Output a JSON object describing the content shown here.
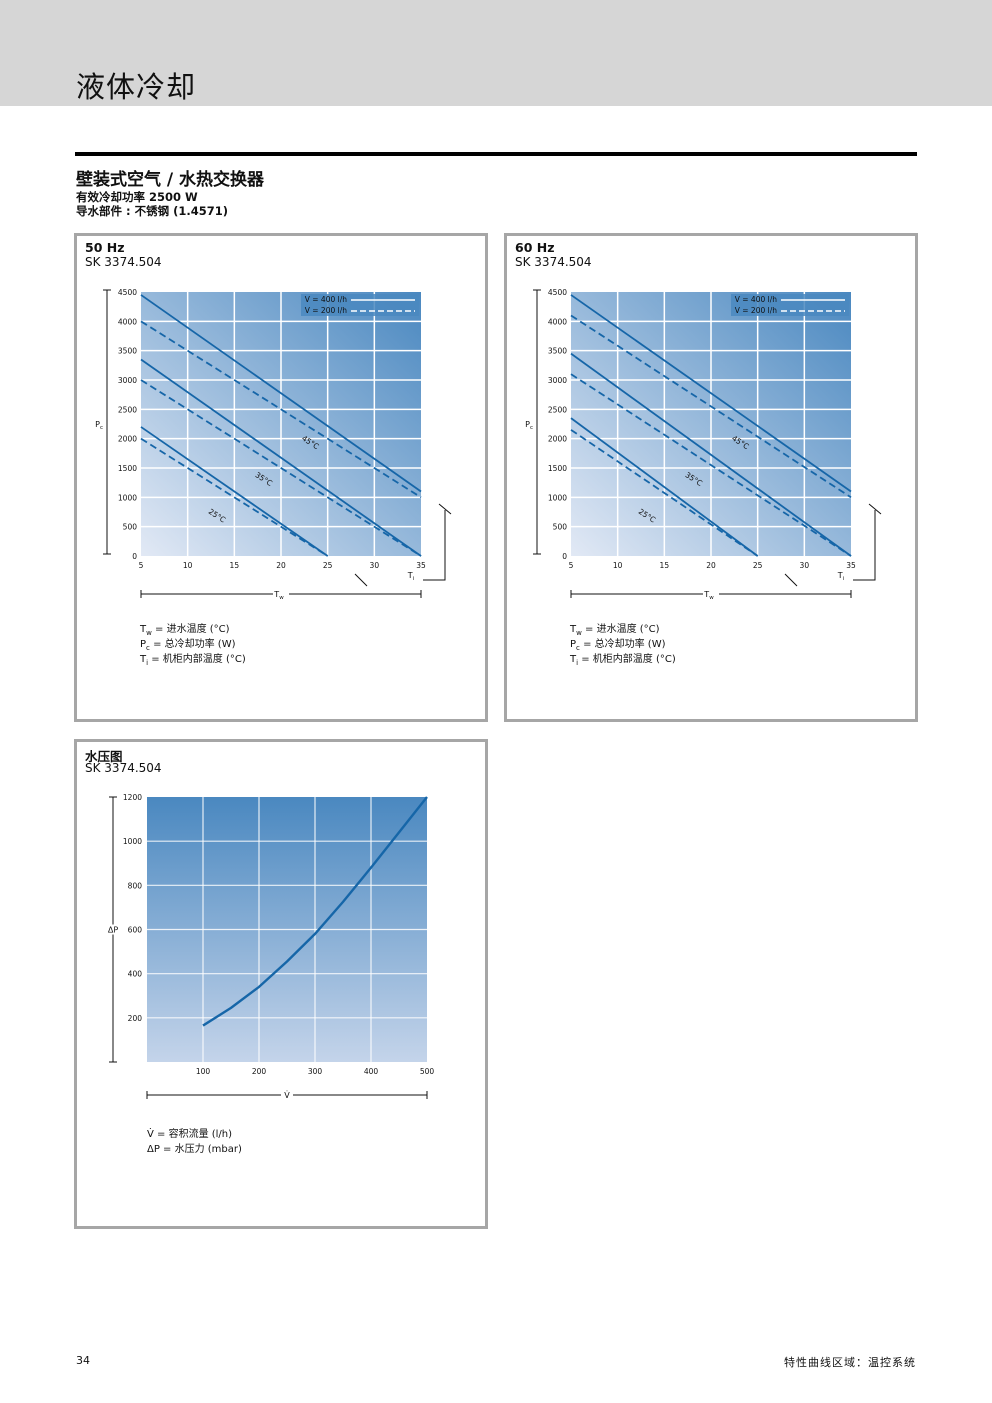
{
  "header": {
    "title": "液体冷却"
  },
  "section": {
    "title": "壁装式空气 / 水热交换器",
    "line1": "有效冷却功率 2500 W",
    "line2": "导水部件 : 不锈钢 (1.4571)"
  },
  "panels": {
    "p50": {
      "title": "50 Hz",
      "model": "SK 3374.504"
    },
    "p60": {
      "title": "60 Hz",
      "model": "SK 3374.504"
    },
    "pressure": {
      "title": "水压图",
      "model": "SK 3374.504"
    }
  },
  "legend_cooling": {
    "tw": {
      "sym": "T",
      "sub": "w",
      "text": " = 进水温度 (°C)"
    },
    "pc": {
      "sym": "P",
      "sub": "c",
      "text": " = 总冷却功率 (W)"
    },
    "ti": {
      "sym": "T",
      "sub": "i",
      "text": "  = 机柜内部温度 (°C)"
    }
  },
  "legend_pressure": {
    "v": "V̇   = 容积流量 (l/h)",
    "dp": "ΔP = 水压力 (mbar)"
  },
  "footer": {
    "page": "34",
    "right": "特性曲线区域：温控系统"
  },
  "colors": {
    "grad_top": "#4a88c0",
    "grad_bottom": "#c4d4ea",
    "curve": "#1666a8",
    "panel_border": "#a6a6a6",
    "topbar": "#d6d6d6"
  },
  "chart_data": [
    {
      "type": "line",
      "title": "50 Hz",
      "xlabel": "Tw",
      "ylabel": "Pc",
      "xlim": [
        5,
        35
      ],
      "ylim": [
        0,
        4500
      ],
      "xticks": [
        5,
        10,
        15,
        20,
        25,
        30,
        35
      ],
      "yticks": [
        0,
        500,
        1000,
        1500,
        2000,
        2500,
        3000,
        3500,
        4000,
        4500
      ],
      "legend": [
        "V = 400 l/h",
        "V = 200 l/h"
      ],
      "series": [
        {
          "name": "45°C V = 400 l/h",
          "x": [
            5,
            35
          ],
          "y": [
            4450,
            1100
          ]
        },
        {
          "name": "45°C V = 200 l/h",
          "x": [
            5,
            35
          ],
          "y": [
            4000,
            1000
          ]
        },
        {
          "name": "35°C V = 400 l/h",
          "x": [
            5,
            35
          ],
          "y": [
            3350,
            0
          ]
        },
        {
          "name": "35°C V = 200 l/h",
          "x": [
            5,
            35
          ],
          "y": [
            3000,
            0
          ]
        },
        {
          "name": "25°C V = 400 l/h",
          "x": [
            5,
            25
          ],
          "y": [
            2200,
            0
          ]
        },
        {
          "name": "25°C V = 200 l/h",
          "x": [
            5,
            25
          ],
          "y": [
            2000,
            0
          ]
        }
      ],
      "annotations": [
        "45°C",
        "35°C",
        "25°C"
      ],
      "axis_markers": [
        "Ti"
      ]
    },
    {
      "type": "line",
      "title": "60 Hz",
      "xlabel": "Tw",
      "ylabel": "Pc",
      "xlim": [
        5,
        35
      ],
      "ylim": [
        0,
        4500
      ],
      "xticks": [
        5,
        10,
        15,
        20,
        25,
        30,
        35
      ],
      "yticks": [
        0,
        500,
        1000,
        1500,
        2000,
        2500,
        3000,
        3500,
        4000,
        4500
      ],
      "legend": [
        "V = 400 l/h",
        "V = 200 l/h"
      ],
      "series": [
        {
          "name": "45°C V = 400 l/h",
          "x": [
            5,
            35
          ],
          "y": [
            4450,
            1100
          ]
        },
        {
          "name": "45°C V = 200 l/h",
          "x": [
            5,
            35
          ],
          "y": [
            4100,
            1000
          ]
        },
        {
          "name": "35°C V = 400 l/h",
          "x": [
            5,
            35
          ],
          "y": [
            3450,
            0
          ]
        },
        {
          "name": "35°C V = 200 l/h",
          "x": [
            5,
            35
          ],
          "y": [
            3100,
            0
          ]
        },
        {
          "name": "25°C V = 400 l/h",
          "x": [
            5,
            25
          ],
          "y": [
            2350,
            0
          ]
        },
        {
          "name": "25°C V = 200 l/h",
          "x": [
            5,
            25
          ],
          "y": [
            2150,
            0
          ]
        }
      ],
      "annotations": [
        "45°C",
        "35°C",
        "25°C"
      ],
      "axis_markers": [
        "Ti"
      ]
    },
    {
      "type": "line",
      "title": "水压图",
      "xlabel": "V̇",
      "ylabel": "ΔP",
      "xlim": [
        0,
        500
      ],
      "ylim": [
        0,
        1200
      ],
      "xticks": [
        100,
        200,
        300,
        400,
        500
      ],
      "yticks": [
        200,
        400,
        600,
        800,
        1000,
        1200
      ],
      "series": [
        {
          "name": "",
          "x": [
            100,
            150,
            200,
            250,
            300,
            350,
            400,
            450,
            500
          ],
          "y": [
            165,
            245,
            340,
            455,
            580,
            725,
            880,
            1040,
            1200
          ]
        }
      ]
    }
  ]
}
